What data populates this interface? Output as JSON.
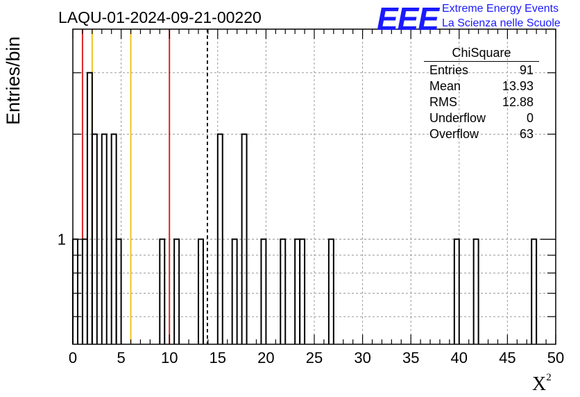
{
  "header": {
    "title": "LAQU-01-2024-09-21-00220",
    "logo_mark": "EEE",
    "logo_line1": "Extreme Energy Events",
    "logo_line2": "La Scienza nelle Scuole"
  },
  "stats_box": {
    "title": "ChiSquare",
    "rows": [
      {
        "label": "Entries",
        "value": "91"
      },
      {
        "label": "Mean",
        "value": "13.93"
      },
      {
        "label": "RMS",
        "value": "12.88"
      },
      {
        "label": "Underflow",
        "value": "0"
      },
      {
        "label": "Overflow",
        "value": "63"
      }
    ]
  },
  "colors": {
    "red_line": "#dd2222",
    "yellow_line": "#f2c31a",
    "histogram": "#000000",
    "grid": "#9a9a9a",
    "logo": "#1a1aff"
  },
  "chart_data": {
    "type": "bar",
    "style": "step-histogram",
    "title": "LAQU-01-2024-09-21-00220",
    "xlabel": "X",
    "xlabel_superscript": "2",
    "ylabel": "Entries/bin",
    "xlim": [
      0,
      50
    ],
    "ylim": [
      0.5,
      4
    ],
    "y_scale": "log",
    "grid": true,
    "bin_width": 0.5,
    "x_ticks": [
      0,
      5,
      10,
      15,
      20,
      25,
      30,
      35,
      40,
      45,
      50
    ],
    "x_tick_labels": [
      "0",
      "5",
      "10",
      "15",
      "20",
      "25",
      "30",
      "35",
      "40",
      "45",
      "50"
    ],
    "y_tick_labels": [
      {
        "value": 1,
        "label": "1"
      }
    ],
    "bins": [
      {
        "x": 0.0,
        "count": 1
      },
      {
        "x": 1.0,
        "count": 1
      },
      {
        "x": 1.5,
        "count": 3
      },
      {
        "x": 2.0,
        "count": 2
      },
      {
        "x": 3.0,
        "count": 2
      },
      {
        "x": 4.0,
        "count": 2
      },
      {
        "x": 4.5,
        "count": 1
      },
      {
        "x": 9.0,
        "count": 1
      },
      {
        "x": 10.5,
        "count": 1
      },
      {
        "x": 13.0,
        "count": 1
      },
      {
        "x": 15.0,
        "count": 2
      },
      {
        "x": 16.5,
        "count": 1
      },
      {
        "x": 17.5,
        "count": 2
      },
      {
        "x": 19.5,
        "count": 1
      },
      {
        "x": 21.5,
        "count": 1
      },
      {
        "x": 23.0,
        "count": 1
      },
      {
        "x": 23.5,
        "count": 1
      },
      {
        "x": 26.5,
        "count": 1
      },
      {
        "x": 39.5,
        "count": 1
      },
      {
        "x": 41.5,
        "count": 1
      },
      {
        "x": 47.5,
        "count": 1
      }
    ],
    "vertical_lines": [
      {
        "x": 1.0,
        "color": "red",
        "style": "solid"
      },
      {
        "x": 2.0,
        "color": "yellow",
        "style": "solid"
      },
      {
        "x": 6.0,
        "color": "yellow",
        "style": "solid"
      },
      {
        "x": 10.0,
        "color": "red",
        "style": "solid"
      },
      {
        "x": 13.93,
        "color": "black",
        "style": "dashed"
      }
    ],
    "legend": "top-right"
  }
}
